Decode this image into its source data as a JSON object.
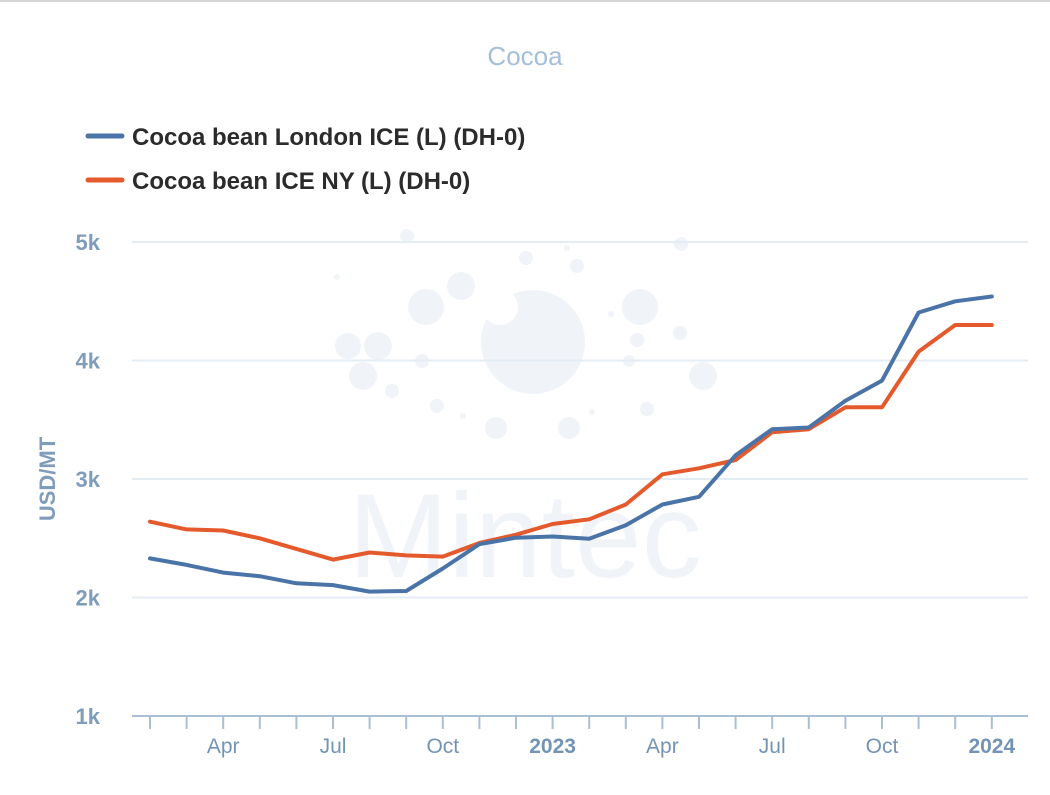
{
  "chart_data": {
    "type": "line",
    "title": "Cocoa",
    "ylabel": "USD/MT",
    "ylim": [
      1000,
      5000
    ],
    "yticks": [
      {
        "value": 1000,
        "label": "1k"
      },
      {
        "value": 2000,
        "label": "2k"
      },
      {
        "value": 3000,
        "label": "3k"
      },
      {
        "value": 4000,
        "label": "4k"
      },
      {
        "value": 5000,
        "label": "5k"
      }
    ],
    "x": [
      "2022-02",
      "2022-03",
      "2022-04",
      "2022-05",
      "2022-06",
      "2022-07",
      "2022-08",
      "2022-09",
      "2022-10",
      "2022-11",
      "2022-12",
      "2023-01",
      "2023-02",
      "2023-03",
      "2023-04",
      "2023-05",
      "2023-06",
      "2023-07",
      "2023-08",
      "2023-09",
      "2023-10",
      "2023-11",
      "2023-12",
      "2024-01"
    ],
    "xtick_labels": [
      {
        "x": "2022-04",
        "label": "Apr",
        "bold": false
      },
      {
        "x": "2022-07",
        "label": "Jul",
        "bold": false
      },
      {
        "x": "2022-10",
        "label": "Oct",
        "bold": false
      },
      {
        "x": "2023-01",
        "label": "2023",
        "bold": true
      },
      {
        "x": "2023-04",
        "label": "Apr",
        "bold": false
      },
      {
        "x": "2023-07",
        "label": "Jul",
        "bold": false
      },
      {
        "x": "2023-10",
        "label": "Oct",
        "bold": false
      },
      {
        "x": "2024-01",
        "label": "2024",
        "bold": true
      }
    ],
    "series": [
      {
        "name": "Cocoa bean London ICE (L) (DH-0)",
        "color": "#4a74a8",
        "values": [
          2330,
          2275,
          2210,
          2180,
          2120,
          2105,
          2050,
          2055,
          2245,
          2450,
          2505,
          2515,
          2495,
          2610,
          2785,
          2850,
          3200,
          3420,
          3435,
          3660,
          3830,
          4405,
          4500,
          4540
        ]
      },
      {
        "name": "Cocoa bean ICE NY (L) (DH-0)",
        "color": "#e45a2c",
        "values": [
          2640,
          2575,
          2565,
          2500,
          2410,
          2320,
          2380,
          2355,
          2345,
          2460,
          2530,
          2620,
          2660,
          2785,
          3040,
          3090,
          3160,
          3395,
          3420,
          3605,
          3605,
          4075,
          4300,
          4300
        ]
      }
    ],
    "grid": true,
    "legend_position": "top-left",
    "watermark": "Mintec"
  }
}
